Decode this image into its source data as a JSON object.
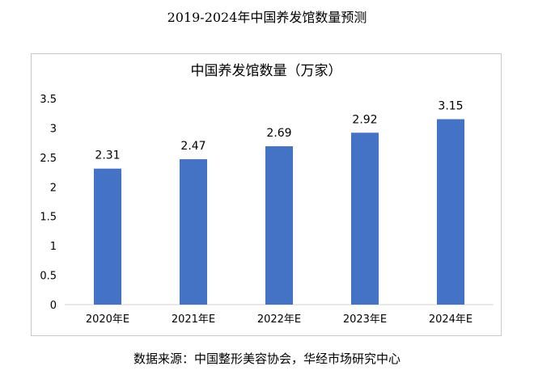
{
  "page": {
    "title": "2019-2024年中国养发馆数量预测",
    "source": "数据来源：中国整形美容协会，华经市场研究中心"
  },
  "chart_data": {
    "type": "bar",
    "title": "中国养发馆数量（万家）",
    "categories": [
      "2020年E",
      "2021年E",
      "2022年E",
      "2023年E",
      "2024年E"
    ],
    "values": [
      2.31,
      2.47,
      2.69,
      2.92,
      3.15
    ],
    "value_labels": [
      "2.31",
      "2.47",
      "2.69",
      "2.92",
      "3.15"
    ],
    "y_ticks": [
      "0",
      "0.5",
      "1",
      "1.5",
      "2",
      "2.5",
      "3",
      "3.5"
    ],
    "ylim": [
      0,
      3.5
    ],
    "xlabel": "",
    "ylabel": "",
    "grid": false,
    "legend": "none",
    "bar_color": "#4472c4"
  }
}
